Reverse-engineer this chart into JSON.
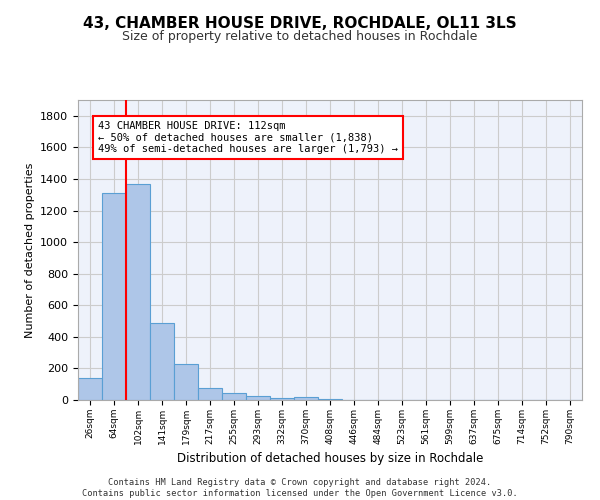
{
  "title": "43, CHAMBER HOUSE DRIVE, ROCHDALE, OL11 3LS",
  "subtitle": "Size of property relative to detached houses in Rochdale",
  "xlabel": "Distribution of detached houses by size in Rochdale",
  "ylabel": "Number of detached properties",
  "bar_color": "#aec6e8",
  "bar_edge_color": "#5a9fd4",
  "bin_labels": [
    "26sqm",
    "64sqm",
    "102sqm",
    "141sqm",
    "179sqm",
    "217sqm",
    "255sqm",
    "293sqm",
    "332sqm",
    "370sqm",
    "408sqm",
    "446sqm",
    "484sqm",
    "523sqm",
    "561sqm",
    "599sqm",
    "637sqm",
    "675sqm",
    "714sqm",
    "752sqm",
    "790sqm"
  ],
  "bar_heights": [
    140,
    1310,
    1370,
    490,
    225,
    75,
    45,
    25,
    15,
    20,
    5,
    0,
    0,
    0,
    0,
    0,
    0,
    0,
    0,
    0,
    0
  ],
  "property_line_x": 2.0,
  "annotation_text": "43 CHAMBER HOUSE DRIVE: 112sqm\n← 50% of detached houses are smaller (1,838)\n49% of semi-detached houses are larger (1,793) →",
  "ylim": [
    0,
    1900
  ],
  "yticks": [
    0,
    200,
    400,
    600,
    800,
    1000,
    1200,
    1400,
    1600,
    1800
  ],
  "background_color": "#eef2fb",
  "grid_color": "#cccccc",
  "footer": "Contains HM Land Registry data © Crown copyright and database right 2024.\nContains public sector information licensed under the Open Government Licence v3.0."
}
